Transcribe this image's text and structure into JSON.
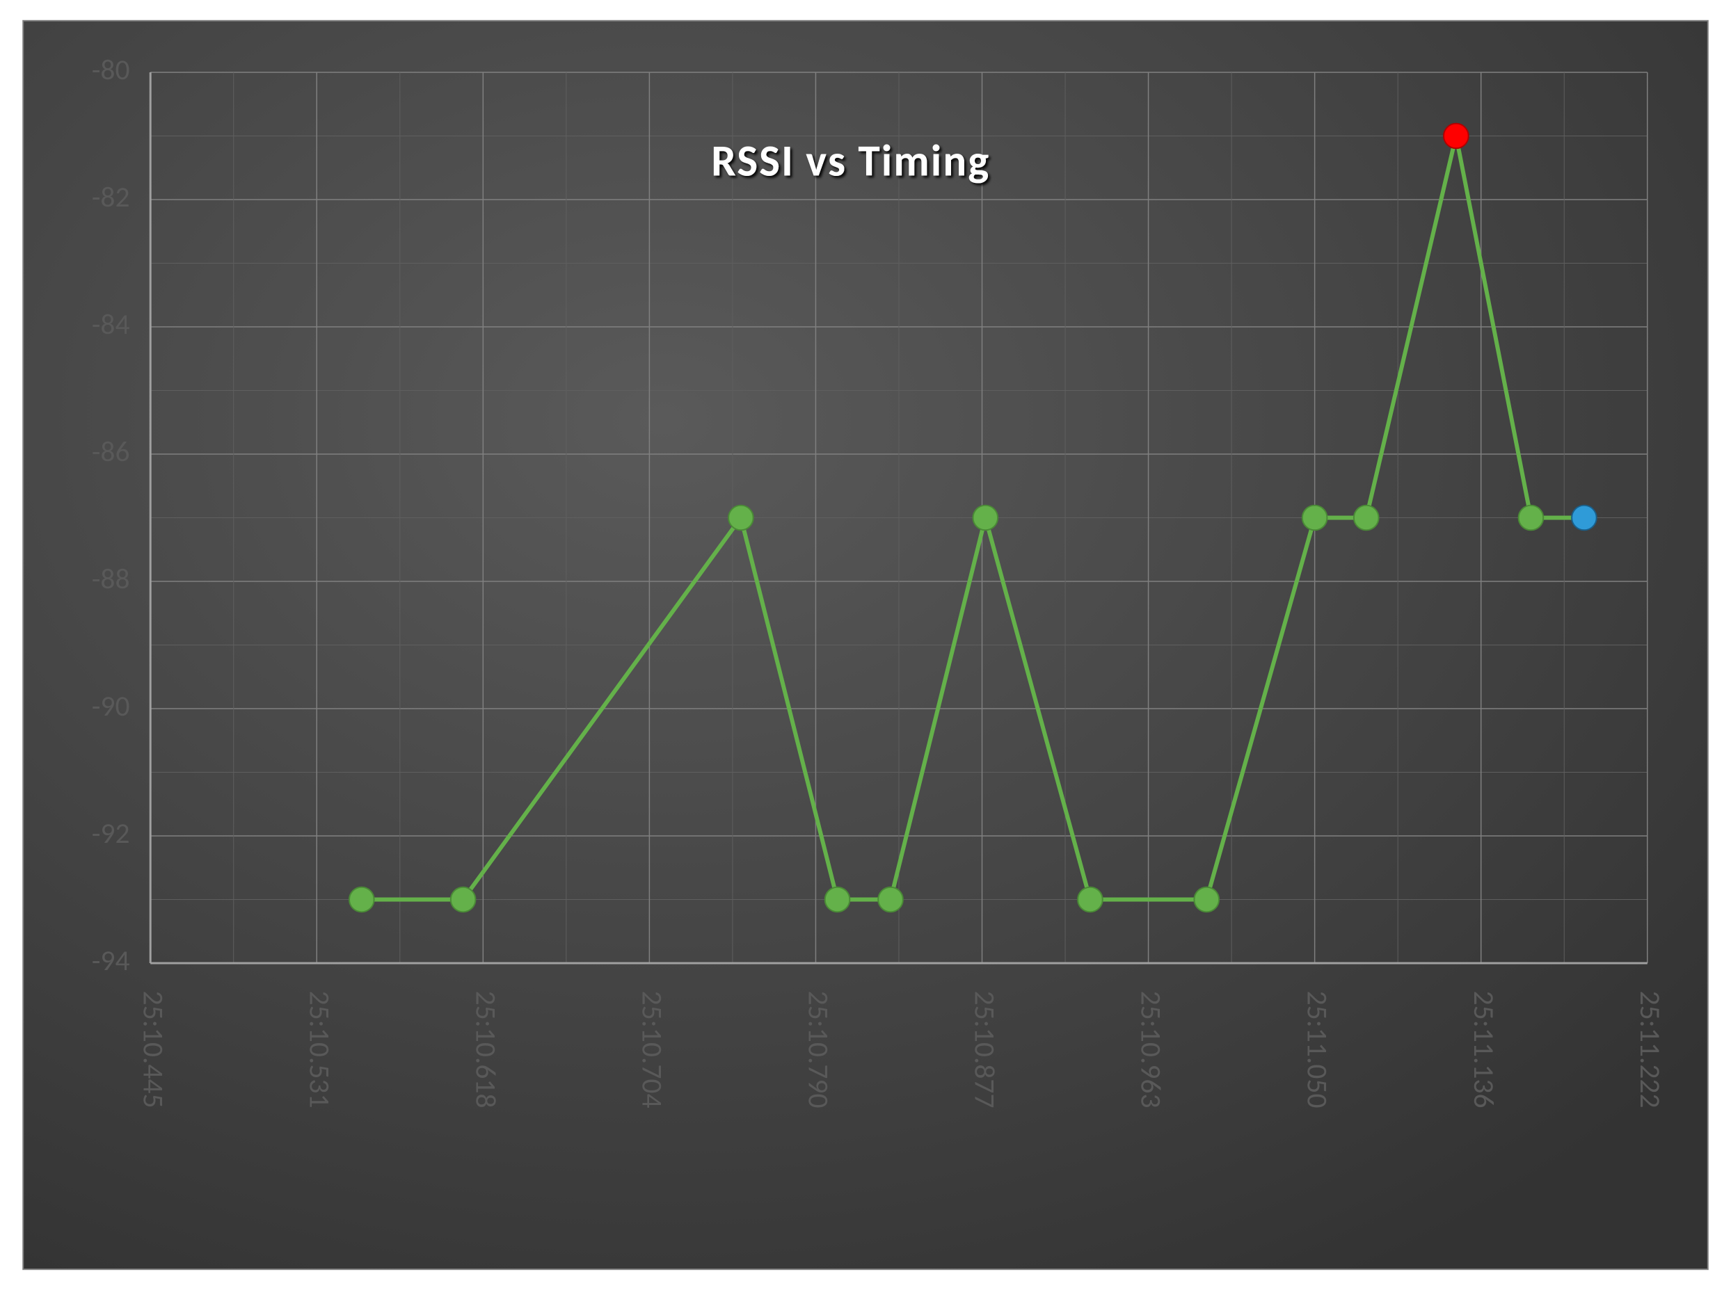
{
  "chart": {
    "type": "line",
    "title": "RSSI vs Timing",
    "title_fontsize": 64,
    "title_font_weight": "bold",
    "title_color": "#ffffff",
    "title_shadow_color": "#000000",
    "plot_background_gradient": {
      "type": "radial",
      "center_color": "#5a5a5a",
      "edge_color": "#333333"
    },
    "outer_border_color": "#808080",
    "outer_border_width": 2,
    "grid_major_color": "#808080",
    "grid_major_width": 1.5,
    "grid_minor_color": "#5f5f5f",
    "grid_minor_width": 1,
    "axis_label_color": "#595959",
    "axis_label_fontsize": 42,
    "y_axis": {
      "min": -94,
      "max": -80,
      "tick_step": 2,
      "ticks": [
        -80,
        -82,
        -84,
        -86,
        -88,
        -90,
        -92,
        -94
      ]
    },
    "x_axis": {
      "categories": [
        "25:10.445",
        "25:10.531",
        "25:10.618",
        "25:10.704",
        "25:10.790",
        "25:10.877",
        "25:10.963",
        "25:11.050",
        "25:11.136",
        "25:11.222"
      ],
      "label_rotation": 90
    },
    "series": {
      "line_color": "#64b14a",
      "line_width": 6,
      "marker_radius": 18,
      "marker_stroke_color": "#4a8a36",
      "marker_stroke_width": 2,
      "points": [
        {
          "x": 1.27,
          "y": -93,
          "color": "#64b14a",
          "stroke": "#4a8a36"
        },
        {
          "x": 1.88,
          "y": -93,
          "color": "#64b14a",
          "stroke": "#4a8a36"
        },
        {
          "x": 3.55,
          "y": -87,
          "color": "#64b14a",
          "stroke": "#4a8a36"
        },
        {
          "x": 4.13,
          "y": -93,
          "color": "#64b14a",
          "stroke": "#4a8a36"
        },
        {
          "x": 4.45,
          "y": -93,
          "color": "#64b14a",
          "stroke": "#4a8a36"
        },
        {
          "x": 5.02,
          "y": -87,
          "color": "#64b14a",
          "stroke": "#4a8a36"
        },
        {
          "x": 5.65,
          "y": -93,
          "color": "#64b14a",
          "stroke": "#4a8a36"
        },
        {
          "x": 6.35,
          "y": -93,
          "color": "#64b14a",
          "stroke": "#4a8a36"
        },
        {
          "x": 7.0,
          "y": -87,
          "color": "#64b14a",
          "stroke": "#4a8a36"
        },
        {
          "x": 7.31,
          "y": -87,
          "color": "#64b14a",
          "stroke": "#4a8a36"
        },
        {
          "x": 7.85,
          "y": -81,
          "color": "#ff0000",
          "stroke": "#b00000"
        },
        {
          "x": 8.3,
          "y": -87,
          "color": "#64b14a",
          "stroke": "#4a8a36"
        },
        {
          "x": 8.62,
          "y": -87,
          "color": "#2f9bd8",
          "stroke": "#1a5e88"
        }
      ]
    }
  }
}
